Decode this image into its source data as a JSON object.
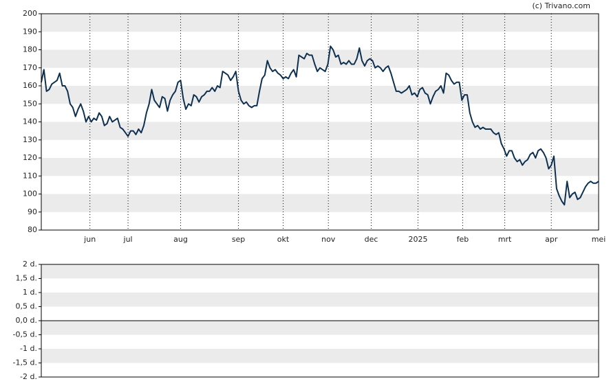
{
  "chart_data": [
    {
      "type": "line",
      "source": "(c) Trivano.com",
      "color": "#0d3050",
      "bands": true,
      "values": [
        162,
        169,
        157,
        158,
        161,
        162,
        163,
        167,
        160,
        160,
        157,
        150,
        148,
        143,
        147,
        150,
        146,
        140,
        143,
        140,
        142,
        141,
        145,
        143,
        138,
        139,
        143,
        140,
        141,
        142,
        137,
        136,
        134,
        132,
        135,
        135,
        133,
        136,
        134,
        138,
        145,
        150,
        158,
        152,
        150,
        148,
        154,
        153,
        146,
        152,
        155,
        157,
        162,
        163,
        153,
        147,
        150,
        149,
        155,
        154,
        151,
        154,
        155,
        157,
        157,
        159,
        157,
        160,
        159,
        168,
        167,
        166,
        163,
        165,
        168,
        157,
        152,
        150,
        151,
        149,
        148,
        149,
        149,
        157,
        164,
        166,
        174,
        170,
        168,
        169,
        167,
        166,
        164,
        165,
        164,
        167,
        169,
        165,
        177,
        176,
        175,
        178,
        177,
        177,
        172,
        168,
        170,
        169,
        168,
        172,
        182,
        180,
        176,
        177,
        172,
        173,
        172,
        174,
        172,
        172,
        175,
        181,
        174,
        171,
        174,
        175,
        174,
        170,
        171,
        170,
        168,
        170,
        171,
        167,
        162,
        157,
        157,
        156,
        157,
        158,
        160,
        155,
        156,
        154,
        158,
        159,
        156,
        155,
        150,
        154,
        157,
        158,
        160,
        156,
        167,
        166,
        163,
        161,
        162,
        162,
        152,
        155,
        155,
        145,
        140,
        137,
        138,
        136,
        137,
        136,
        136,
        136,
        134,
        133,
        134,
        128,
        125,
        121,
        124,
        124,
        120,
        118,
        119,
        116,
        118,
        119,
        122,
        123,
        120,
        124,
        125,
        123,
        120,
        114,
        116,
        121,
        103,
        99,
        96,
        94,
        107,
        98,
        100,
        101,
        97,
        98,
        101,
        104,
        106,
        107,
        106,
        106,
        107
      ],
      "xlim": [
        0,
        212
      ],
      "xticks": [
        {
          "value": 18.5,
          "label": "jun"
        },
        {
          "value": 33,
          "label": "jul"
        },
        {
          "value": 53,
          "label": "aug"
        },
        {
          "value": 75,
          "label": "sep"
        },
        {
          "value": 92,
          "label": "okt"
        },
        {
          "value": 109.2,
          "label": "nov"
        },
        {
          "value": 125.5,
          "label": "dec"
        },
        {
          "value": 143.3,
          "label": "2025"
        },
        {
          "value": 160.3,
          "label": "feb"
        },
        {
          "value": 176.3,
          "label": "mrt"
        },
        {
          "value": 194,
          "label": "apr"
        },
        {
          "value": 212,
          "label": "mei"
        }
      ],
      "ylim": [
        80,
        200
      ],
      "yticks": [
        80,
        90,
        100,
        110,
        120,
        130,
        140,
        150,
        160,
        170,
        180,
        190,
        200
      ]
    },
    {
      "type": "line",
      "bands": true,
      "ylim": [
        -2,
        2
      ],
      "yticks": [
        {
          "value": -2,
          "label": "-2 d."
        },
        {
          "value": -1.5,
          "label": "-1,5 d."
        },
        {
          "value": -1,
          "label": "-1 d."
        },
        {
          "value": -0.5,
          "label": "-0,5 d."
        },
        {
          "value": 0,
          "label": "0,0 d."
        },
        {
          "value": 0.5,
          "label": "0,5 d."
        },
        {
          "value": 1,
          "label": "1 d."
        },
        {
          "value": 1.5,
          "label": "1,5 d."
        },
        {
          "value": 2,
          "label": "2 d."
        }
      ]
    }
  ]
}
